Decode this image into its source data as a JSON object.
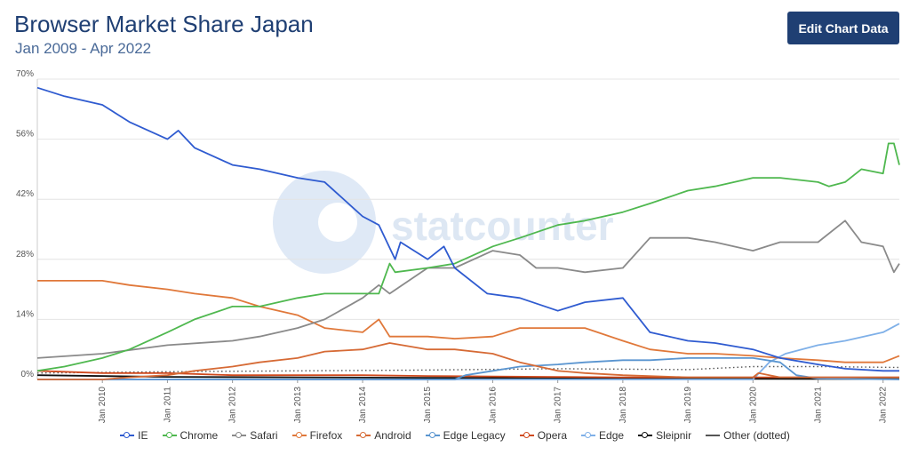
{
  "header": {
    "title": "Browser Market Share Japan",
    "subtitle": "Jan 2009 - Apr 2022",
    "edit_button_label": "Edit Chart Data"
  },
  "watermark": "statcounter",
  "chart_data": {
    "type": "line",
    "title": "Browser Market Share Japan",
    "subtitle": "Jan 2009 - Apr 2022",
    "x_start": "2009-01",
    "x_end": "2022-04",
    "ylim": [
      0,
      70
    ],
    "y_ticks": [
      "0%",
      "14%",
      "28%",
      "42%",
      "56%",
      "70%"
    ],
    "x_ticks": [
      "Jan 2010",
      "Jan 2011",
      "Jan 2012",
      "Jan 2013",
      "Jan 2014",
      "Jan 2015",
      "Jan 2016",
      "Jan 2017",
      "Jan 2018",
      "Jan 2019",
      "Jan 2020",
      "Jan 2021",
      "Jan 2022"
    ],
    "grid": true,
    "legend_position": "bottom",
    "series": [
      {
        "name": "IE",
        "color": "#2f5bd0",
        "style": "solid",
        "keyframes": [
          [
            "2009-01",
            68
          ],
          [
            "2009-06",
            66
          ],
          [
            "2010-01",
            64
          ],
          [
            "2010-06",
            60
          ],
          [
            "2011-01",
            56
          ],
          [
            "2011-03",
            58
          ],
          [
            "2011-06",
            54
          ],
          [
            "2012-01",
            50
          ],
          [
            "2012-06",
            49
          ],
          [
            "2013-01",
            47
          ],
          [
            "2013-06",
            46
          ],
          [
            "2014-01",
            38
          ],
          [
            "2014-04",
            36
          ],
          [
            "2014-07",
            28
          ],
          [
            "2014-08",
            32
          ],
          [
            "2015-01",
            28
          ],
          [
            "2015-04",
            31
          ],
          [
            "2015-06",
            26
          ],
          [
            "2015-12",
            20
          ],
          [
            "2016-06",
            19
          ],
          [
            "2017-01",
            16
          ],
          [
            "2017-06",
            18
          ],
          [
            "2018-01",
            19
          ],
          [
            "2018-06",
            11
          ],
          [
            "2019-01",
            9
          ],
          [
            "2019-06",
            8.5
          ],
          [
            "2020-01",
            7
          ],
          [
            "2020-06",
            5
          ],
          [
            "2021-01",
            3.5
          ],
          [
            "2021-06",
            2.5
          ],
          [
            "2022-01",
            2
          ],
          [
            "2022-04",
            2
          ]
        ]
      },
      {
        "name": "Chrome",
        "color": "#4fb84f",
        "style": "solid",
        "keyframes": [
          [
            "2009-01",
            2
          ],
          [
            "2009-06",
            3
          ],
          [
            "2010-01",
            5
          ],
          [
            "2010-06",
            7
          ],
          [
            "2011-01",
            11
          ],
          [
            "2011-06",
            14
          ],
          [
            "2012-01",
            17
          ],
          [
            "2012-06",
            17
          ],
          [
            "2013-01",
            19
          ],
          [
            "2013-06",
            20
          ],
          [
            "2014-01",
            20
          ],
          [
            "2014-04",
            20
          ],
          [
            "2014-06",
            27
          ],
          [
            "2014-07",
            25
          ],
          [
            "2015-01",
            26
          ],
          [
            "2015-06",
            27
          ],
          [
            "2016-01",
            31
          ],
          [
            "2016-06",
            33
          ],
          [
            "2017-01",
            36
          ],
          [
            "2017-06",
            37
          ],
          [
            "2018-01",
            39
          ],
          [
            "2018-06",
            41
          ],
          [
            "2019-01",
            44
          ],
          [
            "2019-06",
            45
          ],
          [
            "2020-01",
            47
          ],
          [
            "2020-06",
            47
          ],
          [
            "2021-01",
            46
          ],
          [
            "2021-03",
            45
          ],
          [
            "2021-06",
            46
          ],
          [
            "2021-09",
            49
          ],
          [
            "2022-01",
            48
          ],
          [
            "2022-02",
            55
          ],
          [
            "2022-03",
            55
          ],
          [
            "2022-04",
            50
          ]
        ]
      },
      {
        "name": "Safari",
        "color": "#8a8a8a",
        "style": "solid",
        "keyframes": [
          [
            "2009-01",
            5
          ],
          [
            "2010-01",
            6
          ],
          [
            "2011-01",
            8
          ],
          [
            "2012-01",
            9
          ],
          [
            "2012-06",
            10
          ],
          [
            "2013-01",
            12
          ],
          [
            "2013-06",
            14
          ],
          [
            "2014-01",
            19
          ],
          [
            "2014-04",
            22
          ],
          [
            "2014-06",
            20
          ],
          [
            "2015-01",
            26
          ],
          [
            "2015-06",
            26
          ],
          [
            "2016-01",
            30
          ],
          [
            "2016-06",
            29
          ],
          [
            "2016-09",
            26
          ],
          [
            "2017-01",
            26
          ],
          [
            "2017-06",
            25
          ],
          [
            "2018-01",
            26
          ],
          [
            "2018-06",
            33
          ],
          [
            "2019-01",
            33
          ],
          [
            "2019-06",
            32
          ],
          [
            "2020-01",
            30
          ],
          [
            "2020-06",
            32
          ],
          [
            "2021-01",
            32
          ],
          [
            "2021-06",
            37
          ],
          [
            "2021-09",
            32
          ],
          [
            "2022-01",
            31
          ],
          [
            "2022-03",
            25
          ],
          [
            "2022-04",
            27
          ]
        ]
      },
      {
        "name": "Firefox",
        "color": "#e0783a",
        "style": "solid",
        "keyframes": [
          [
            "2009-01",
            23
          ],
          [
            "2010-01",
            23
          ],
          [
            "2010-06",
            22
          ],
          [
            "2011-01",
            21
          ],
          [
            "2011-06",
            20
          ],
          [
            "2012-01",
            19
          ],
          [
            "2012-06",
            17
          ],
          [
            "2013-01",
            15
          ],
          [
            "2013-06",
            12
          ],
          [
            "2014-01",
            11
          ],
          [
            "2014-04",
            14
          ],
          [
            "2014-06",
            10
          ],
          [
            "2015-01",
            10
          ],
          [
            "2015-06",
            9.5
          ],
          [
            "2016-01",
            10
          ],
          [
            "2016-06",
            12
          ],
          [
            "2017-01",
            12
          ],
          [
            "2017-06",
            12
          ],
          [
            "2018-01",
            9
          ],
          [
            "2018-06",
            7
          ],
          [
            "2019-01",
            6
          ],
          [
            "2019-06",
            6
          ],
          [
            "2020-01",
            5.5
          ],
          [
            "2020-06",
            5
          ],
          [
            "2021-01",
            4.5
          ],
          [
            "2021-06",
            4
          ],
          [
            "2022-01",
            4
          ],
          [
            "2022-04",
            5.5
          ]
        ]
      },
      {
        "name": "Android",
        "color": "#d66a35",
        "style": "solid",
        "keyframes": [
          [
            "2009-01",
            0
          ],
          [
            "2010-01",
            0
          ],
          [
            "2010-06",
            0.5
          ],
          [
            "2011-01",
            1
          ],
          [
            "2011-06",
            2
          ],
          [
            "2012-01",
            3
          ],
          [
            "2012-06",
            4
          ],
          [
            "2013-01",
            5
          ],
          [
            "2013-06",
            6.5
          ],
          [
            "2014-01",
            7
          ],
          [
            "2014-06",
            8.5
          ],
          [
            "2015-01",
            7
          ],
          [
            "2015-06",
            7
          ],
          [
            "2016-01",
            6
          ],
          [
            "2016-06",
            4
          ],
          [
            "2017-01",
            2
          ],
          [
            "2017-06",
            1.5
          ],
          [
            "2018-01",
            1
          ],
          [
            "2019-01",
            0.5
          ],
          [
            "2020-01",
            0.5
          ],
          [
            "2020-02",
            1.5
          ],
          [
            "2020-06",
            0.5
          ],
          [
            "2021-01",
            0.5
          ],
          [
            "2022-04",
            0.5
          ]
        ]
      },
      {
        "name": "Edge Legacy",
        "color": "#5a95d0",
        "style": "solid",
        "keyframes": [
          [
            "2009-01",
            0
          ],
          [
            "2015-06",
            0
          ],
          [
            "2015-08",
            1
          ],
          [
            "2016-01",
            2
          ],
          [
            "2016-06",
            3
          ],
          [
            "2017-01",
            3.5
          ],
          [
            "2017-06",
            4
          ],
          [
            "2018-01",
            4.5
          ],
          [
            "2018-06",
            4.5
          ],
          [
            "2019-01",
            5
          ],
          [
            "2019-06",
            5
          ],
          [
            "2020-01",
            5
          ],
          [
            "2020-06",
            4
          ],
          [
            "2020-09",
            1
          ],
          [
            "2021-01",
            0.2
          ],
          [
            "2022-04",
            0
          ]
        ]
      },
      {
        "name": "Opera",
        "color": "#d04a1e",
        "style": "solid",
        "keyframes": [
          [
            "2009-01",
            2
          ],
          [
            "2010-01",
            1.5
          ],
          [
            "2011-01",
            1.5
          ],
          [
            "2012-01",
            1
          ],
          [
            "2013-01",
            1
          ],
          [
            "2014-01",
            1
          ],
          [
            "2015-01",
            0.8
          ],
          [
            "2016-01",
            0.7
          ],
          [
            "2017-01",
            0.6
          ],
          [
            "2018-01",
            0.5
          ],
          [
            "2019-01",
            0.5
          ],
          [
            "2020-01",
            0.5
          ],
          [
            "2021-01",
            0.5
          ],
          [
            "2022-04",
            0.5
          ]
        ]
      },
      {
        "name": "Edge",
        "color": "#7fb0e8",
        "style": "solid",
        "keyframes": [
          [
            "2009-01",
            0
          ],
          [
            "2020-01",
            0
          ],
          [
            "2020-04",
            4
          ],
          [
            "2020-07",
            6
          ],
          [
            "2021-01",
            8
          ],
          [
            "2021-06",
            9
          ],
          [
            "2022-01",
            11
          ],
          [
            "2022-04",
            13
          ]
        ]
      },
      {
        "name": "Sleipnir",
        "color": "#111111",
        "style": "solid",
        "keyframes": [
          [
            "2009-01",
            1
          ],
          [
            "2011-01",
            0.6
          ],
          [
            "2013-01",
            0.5
          ],
          [
            "2015-01",
            0.4
          ],
          [
            "2017-01",
            0.3
          ],
          [
            "2019-01",
            0.2
          ],
          [
            "2022-04",
            0.1
          ]
        ]
      },
      {
        "name": "Other (dotted)",
        "color": "#555555",
        "style": "dotted",
        "keyframes": [
          [
            "2009-01",
            1.5
          ],
          [
            "2011-01",
            1.8
          ],
          [
            "2013-01",
            2
          ],
          [
            "2015-01",
            2.2
          ],
          [
            "2017-01",
            2.5
          ],
          [
            "2019-01",
            2.3
          ],
          [
            "2020-01",
            3
          ],
          [
            "2021-01",
            3
          ],
          [
            "2022-04",
            2.8
          ]
        ]
      }
    ]
  }
}
